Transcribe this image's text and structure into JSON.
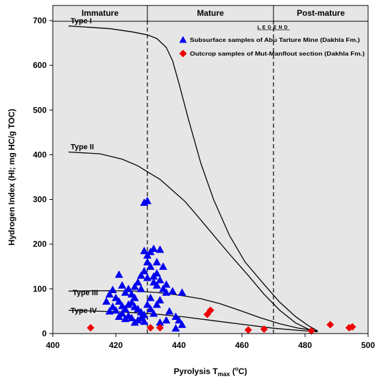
{
  "chart_data": {
    "type": "scatter",
    "title": "",
    "xlabel_prefix": "Pyrolysis T",
    "xlabel_sub": "max",
    "xlabel_unit_open": " (",
    "xlabel_unit_sup": "o",
    "xlabel_unit_close": "C)",
    "ylabel": "Hydrogen Index (HI; mg HC/g TOC)",
    "xlim": [
      400,
      500
    ],
    "ylim": [
      0,
      700
    ],
    "xticks": [
      400,
      420,
      440,
      460,
      480,
      500
    ],
    "yticks": [
      0,
      100,
      200,
      300,
      400,
      500,
      600,
      700
    ],
    "zones": [
      {
        "label": "Immature",
        "from": 400,
        "to": 430
      },
      {
        "label": "Mature",
        "from": 430,
        "to": 470
      },
      {
        "label": "Post-mature",
        "from": 470,
        "to": 500
      }
    ],
    "boundaries": [
      430,
      470
    ],
    "legend_title": "LEGEND",
    "kerogen_curves": [
      {
        "name": "Type I",
        "points": [
          [
            405,
            688
          ],
          [
            418,
            682
          ],
          [
            425,
            675
          ],
          [
            430,
            668
          ],
          [
            433,
            660
          ],
          [
            436,
            640
          ],
          [
            438,
            610
          ],
          [
            440,
            560
          ],
          [
            443,
            480
          ],
          [
            447,
            380
          ],
          [
            451,
            300
          ],
          [
            456,
            220
          ],
          [
            461,
            160
          ],
          [
            467,
            110
          ],
          [
            472,
            70
          ],
          [
            477,
            38
          ],
          [
            481,
            18
          ],
          [
            484,
            6
          ]
        ]
      },
      {
        "name": "Type II",
        "points": [
          [
            405,
            406
          ],
          [
            415,
            402
          ],
          [
            422,
            390
          ],
          [
            427,
            375
          ],
          [
            430,
            362
          ],
          [
            434,
            345
          ],
          [
            438,
            320
          ],
          [
            442,
            295
          ],
          [
            446,
            262
          ],
          [
            451,
            220
          ],
          [
            456,
            178
          ],
          [
            462,
            130
          ],
          [
            467,
            88
          ],
          [
            472,
            52
          ],
          [
            477,
            24
          ],
          [
            481,
            10
          ],
          [
            484,
            5
          ]
        ]
      },
      {
        "name": "Type III",
        "points": [
          [
            405,
            95
          ],
          [
            418,
            96
          ],
          [
            426,
            95
          ],
          [
            433,
            92
          ],
          [
            440,
            86
          ],
          [
            447,
            78
          ],
          [
            453,
            67
          ],
          [
            460,
            50
          ],
          [
            466,
            35
          ],
          [
            472,
            22
          ],
          [
            478,
            12
          ],
          [
            484,
            6
          ]
        ]
      },
      {
        "name": "Type IV",
        "points": [
          [
            405,
            52
          ],
          [
            420,
            49
          ],
          [
            432,
            44
          ],
          [
            442,
            37
          ],
          [
            452,
            28
          ],
          [
            462,
            19
          ],
          [
            470,
            12
          ],
          [
            478,
            7
          ],
          [
            484,
            4
          ]
        ]
      }
    ],
    "series": [
      {
        "name": "Subsurface samples of Abu Tarture Mine (Dakhla Fm.)",
        "color": "#0000ee",
        "marker": "triangle",
        "points": [
          [
            429,
            293
          ],
          [
            430,
            297
          ],
          [
            429,
            185
          ],
          [
            431,
            183
          ],
          [
            430,
            160
          ],
          [
            431,
            150
          ],
          [
            432,
            190
          ],
          [
            434,
            188
          ],
          [
            430,
            175
          ],
          [
            433,
            160
          ],
          [
            435,
            150
          ],
          [
            433,
            135
          ],
          [
            434,
            120
          ],
          [
            436,
            110
          ],
          [
            435,
            100
          ],
          [
            432,
            115
          ],
          [
            432,
            128
          ],
          [
            433,
            108
          ],
          [
            431,
            80
          ],
          [
            428,
            100
          ],
          [
            426,
            105
          ],
          [
            427,
            115
          ],
          [
            428,
            130
          ],
          [
            430,
            125
          ],
          [
            429,
            140
          ],
          [
            421,
            132
          ],
          [
            422,
            108
          ],
          [
            424,
            100
          ],
          [
            423,
            92
          ],
          [
            425,
            88
          ],
          [
            426,
            80
          ],
          [
            419,
            98
          ],
          [
            418,
            88
          ],
          [
            420,
            80
          ],
          [
            417,
            72
          ],
          [
            421,
            72
          ],
          [
            422,
            62
          ],
          [
            423,
            55
          ],
          [
            424,
            65
          ],
          [
            425,
            70
          ],
          [
            426,
            60
          ],
          [
            427,
            55
          ],
          [
            428,
            48
          ],
          [
            429,
            42
          ],
          [
            428,
            35
          ],
          [
            427,
            30
          ],
          [
            426,
            25
          ],
          [
            425,
            35
          ],
          [
            424,
            40
          ],
          [
            422,
            45
          ],
          [
            421,
            38
          ],
          [
            420,
            52
          ],
          [
            419,
            60
          ],
          [
            418,
            50
          ],
          [
            423,
            33
          ],
          [
            430,
            65
          ],
          [
            431,
            55
          ],
          [
            432,
            45
          ],
          [
            433,
            65
          ],
          [
            434,
            75
          ],
          [
            436,
            92
          ],
          [
            438,
            95
          ],
          [
            437,
            50
          ],
          [
            439,
            38
          ],
          [
            440,
            30
          ],
          [
            441,
            92
          ],
          [
            439,
            12
          ],
          [
            436,
            30
          ],
          [
            434,
            25
          ],
          [
            441,
            20
          ],
          [
            429,
            27
          ]
        ]
      },
      {
        "name": "Outcrop samples of Mut-Manflout section (Dakhla Fm.)",
        "color": "#ee0000",
        "marker": "diamond",
        "points": [
          [
            412,
            13
          ],
          [
            431,
            13
          ],
          [
            434,
            13
          ],
          [
            449,
            43
          ],
          [
            450,
            52
          ],
          [
            462,
            8
          ],
          [
            467,
            10
          ],
          [
            482,
            6
          ],
          [
            488,
            20
          ],
          [
            494,
            13
          ],
          [
            495,
            15
          ]
        ]
      }
    ]
  }
}
